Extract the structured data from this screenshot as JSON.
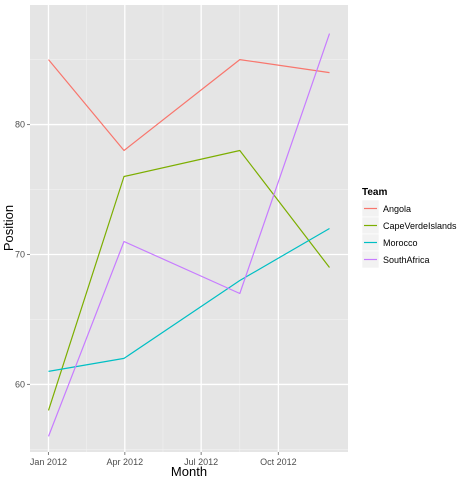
{
  "chart_data": {
    "type": "line",
    "title": "",
    "xlabel": "Month",
    "ylabel": "Position",
    "x": [
      "2012-01-01",
      "2012-03-31",
      "2012-08-16",
      "2012-12-01"
    ],
    "x_ticks": [
      "Jan 2012",
      "Apr 2012",
      "Jul 2012",
      "Oct 2012"
    ],
    "x_tick_values": [
      "2012-01-01",
      "2012-04-01",
      "2012-07-01",
      "2012-10-01"
    ],
    "y_ticks": [
      60,
      70,
      80
    ],
    "xlim": [
      "2011-12-10",
      "2012-12-23"
    ],
    "ylim": [
      54.8,
      89.2
    ],
    "grid": true,
    "legend": {
      "title": "Team",
      "position": "right"
    },
    "series": [
      {
        "name": "Angola",
        "color": "#F8766D",
        "values": [
          85,
          78,
          85,
          84
        ]
      },
      {
        "name": "CapeVerdeIslands",
        "color": "#7CAE00",
        "values": [
          58,
          76,
          78,
          69
        ]
      },
      {
        "name": "Morocco",
        "color": "#00BFC4",
        "values": [
          61,
          62,
          68,
          72
        ]
      },
      {
        "name": "SouthAfrica",
        "color": "#C77CFF",
        "values": [
          56,
          71,
          67,
          87
        ]
      }
    ]
  }
}
